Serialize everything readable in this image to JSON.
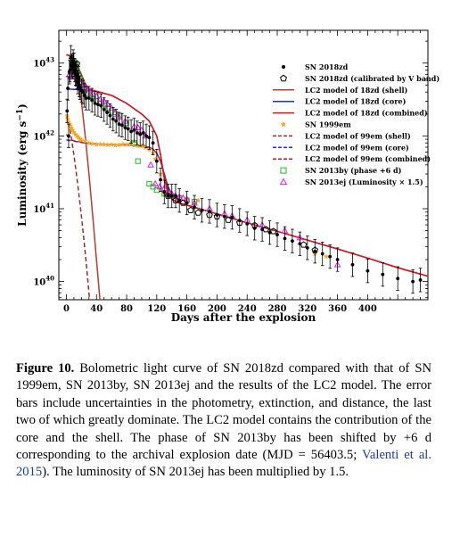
{
  "chart_data": {
    "type": "scatter",
    "xlabel": "Days after the explosion",
    "ylabel": "Luminosity (erg s⁻¹)",
    "xlim": [
      -10,
      480
    ],
    "ylim_log10": [
      39.75,
      43.45
    ],
    "y_scale": "log",
    "x_ticks": [
      "0",
      "40",
      "80",
      "120",
      "160",
      "200",
      "240",
      "280",
      "320",
      "360",
      "400"
    ],
    "y_ticks": [
      {
        "base": "10",
        "exp": "40"
      },
      {
        "base": "10",
        "exp": "41"
      },
      {
        "base": "10",
        "exp": "42"
      },
      {
        "base": "10",
        "exp": "43"
      }
    ],
    "legend_position": "top-right",
    "legend": [
      "SN 2018zd",
      "SN 2018zd (calibrated by V band)",
      "LC2 model of 18zd (shell)",
      "LC2 model of 18zd (core)",
      "LC2 model of 18zd (combined)",
      "SN 1999em",
      "LC2 model of 99em (shell)",
      "LC2 model of 99em (core)",
      "LC2 model of 99em (combined)",
      "SN 2013by (phase +6 d)",
      "SN 2013ej (Luminosity × 1.5)"
    ],
    "colors": {
      "sn2018zd": "#000000",
      "model18_shell": "#c0392b",
      "model18_core": "#1f2fd0",
      "model18_comb": "#e01010",
      "sn1999em": "#f5a623",
      "model99_shell": "#9b2d2d",
      "model99_core": "#1f2fd0",
      "model99_comb": "#e01010",
      "sn2013by": "#22bb22",
      "sn2013ej": "#e020e0"
    },
    "series": [
      {
        "name": "SN 2018zd",
        "x": [
          1,
          2,
          3,
          4,
          5,
          6,
          7,
          8,
          9,
          10,
          11,
          12,
          13,
          14,
          15,
          16,
          17,
          18,
          20,
          22,
          24,
          26,
          30,
          34,
          38,
          42,
          46,
          50,
          54,
          58,
          62,
          66,
          70,
          74,
          78,
          82,
          86,
          90,
          94,
          98,
          102,
          106,
          110,
          115,
          120,
          125,
          130,
          135,
          140,
          145,
          150,
          160,
          170,
          180,
          190,
          200,
          210,
          220,
          230,
          240,
          250,
          260,
          270,
          280,
          290,
          300,
          310,
          320,
          330,
          340,
          350,
          360,
          380,
          400,
          420,
          440,
          460,
          470
        ],
        "y": [
          2.2e+42,
          4.5e+42,
          1e+42,
          7.5e+42,
          8e+42,
          1.2e+43,
          9.2e+42,
          8.8e+42,
          1.05e+43,
          9.5e+42,
          8e+42,
          7.2e+42,
          7e+42,
          6.5e+42,
          5.5e+42,
          6.2e+42,
          5e+42,
          4.6e+42,
          4.2e+42,
          4e+42,
          3.6e+42,
          3.3e+42,
          3.3e+42,
          3.1e+42,
          2.8e+42,
          2.7e+42,
          2.6e+42,
          2.3e+42,
          2.1e+42,
          1.9e+42,
          1.7e+42,
          1.6e+42,
          1.45e+42,
          1.4e+42,
          1.3e+42,
          1.25e+42,
          1.15e+42,
          1.2e+42,
          1.1e+42,
          1.05e+42,
          1.1e+42,
          1e+42,
          9.5e+41,
          8e+41,
          4.5e+41,
          2.5e+41,
          1.7e+41,
          1.5e+41,
          1.5e+41,
          1.5e+41,
          1.3e+41,
          1.2e+41,
          1.05e+41,
          9.5e+40,
          9.2e+40,
          8.2e+40,
          7.8e+40,
          7.6e+40,
          6.9e+40,
          6.2e+40,
          5.4e+40,
          5.2e+40,
          4.7e+40,
          4.4e+40,
          3.9e+40,
          3.6e+40,
          3.3e+40,
          2.9e+40,
          2.6e+40,
          2.4e+40,
          2.2e+40,
          2e+40,
          1.7e+40,
          1.4e+40,
          1.25e+40,
          1.1e+40,
          1e+40,
          1.05e+40
        ]
      },
      {
        "name": "SN 2018zd (calibrated by V band)",
        "x": [
          8,
          14,
          135,
          145,
          155,
          165,
          175,
          190,
          200,
          215,
          230,
          250,
          265,
          275,
          315,
          330
        ],
        "y": [
          9.5e+42,
          9.8e+42,
          1.5e+41,
          1.3e+41,
          1.2e+41,
          9.5e+40,
          8.8e+40,
          8.2e+40,
          7.8e+40,
          7e+40,
          6.4e+40,
          5.9e+40,
          5.2e+40,
          4.9e+40,
          3.2e+40,
          2.7e+40
        ]
      },
      {
        "name": "LC2 model of 18zd (shell)",
        "x": [
          0,
          5,
          10,
          15,
          20,
          25,
          30,
          35,
          40,
          45,
          48
        ],
        "y": [
          1.3e+43,
          1.25e+43,
          1.1e+43,
          7e+42,
          3e+42,
          1e+42,
          3e+41,
          8e+40,
          2e+40,
          5e+39,
          1e+39
        ]
      },
      {
        "name": "LC2 model of 18zd (core)",
        "x": [
          0,
          20,
          40,
          60,
          80,
          100,
          110,
          120,
          125,
          130,
          135,
          140,
          150,
          160,
          200,
          240,
          280,
          320,
          360,
          400,
          440,
          480
        ],
        "y": [
          4.4e+42,
          4.3e+42,
          4.1e+42,
          3.6e+42,
          2.8e+42,
          2e+42,
          1.6e+42,
          1e+42,
          5.5e+41,
          2.6e+41,
          1.65e+41,
          1.35e+41,
          1.2e+41,
          1.12e+41,
          8.5e+40,
          6.4e+40,
          4.9e+40,
          3.7e+40,
          2.8e+40,
          2.1e+40,
          1.55e+40,
          1.18e+40
        ]
      },
      {
        "name": "LC2 model of 18zd (combined)",
        "x": [
          0,
          5,
          10,
          15,
          20,
          25,
          30,
          40,
          60,
          80,
          100,
          110,
          120,
          125,
          130,
          135,
          140,
          150,
          160,
          200,
          240,
          280,
          320,
          360,
          400,
          440,
          480
        ],
        "y": [
          1.3e+43,
          1.27e+43,
          1.15e+43,
          9e+42,
          7e+42,
          5.2e+42,
          4.4e+42,
          4.1e+42,
          3.6e+42,
          2.8e+42,
          2e+42,
          1.6e+42,
          1e+42,
          5.5e+41,
          2.6e+41,
          1.65e+41,
          1.35e+41,
          1.2e+41,
          1.12e+41,
          8.5e+40,
          6.4e+40,
          4.9e+40,
          3.7e+40,
          2.8e+40,
          2.1e+40,
          1.55e+40,
          1.18e+40
        ]
      },
      {
        "name": "SN 1999em",
        "x": [
          1,
          2,
          3,
          4,
          5,
          6,
          7,
          8,
          10,
          12,
          14,
          16,
          18,
          20,
          25,
          30,
          35,
          40,
          45,
          50,
          55,
          60,
          65,
          70,
          75,
          80,
          85,
          90,
          95,
          100,
          105,
          110,
          115,
          118,
          125,
          130,
          135,
          140,
          150,
          160,
          175,
          330,
          345
        ],
        "y": [
          1.9e+42,
          1.7e+42,
          1.55e+42,
          1.45e+42,
          1.38e+42,
          1.3e+42,
          1.25e+42,
          1.2e+42,
          1.12e+42,
          1.05e+42,
          1e+42,
          9.5e+41,
          9e+41,
          8.8e+41,
          8.5e+41,
          8e+41,
          7.8e+41,
          7.6e+41,
          7.7e+41,
          7.6e+41,
          7.5e+41,
          7.6e+41,
          7.4e+41,
          7.5e+41,
          7.7e+41,
          7.6e+41,
          7.8e+41,
          7.4e+41,
          7.3e+41,
          7.2e+41,
          6.9e+41,
          6.5e+41,
          5.8e+41,
          4.8e+41,
          3e+41,
          1.6e+41,
          1.55e+41,
          1.5e+41,
          1.42e+41,
          1.35e+41,
          1.3e+41,
          2.4e+40,
          2.2e+40
        ]
      },
      {
        "name": "LC2 model of 99em (shell)",
        "x": [
          0,
          5,
          10,
          15,
          20,
          25,
          30,
          32,
          34,
          36,
          38
        ],
        "y": [
          1.9e+42,
          1.2e+42,
          5.5e+41,
          2.2e+41,
          8e+40,
          2.5e+40,
          7e+39,
          4e+39,
          2e+39,
          1e+39,
          5e+38
        ]
      },
      {
        "name": "LC2 model of 99em (core)",
        "x": [
          0,
          10,
          20,
          30,
          40,
          60,
          80,
          100,
          110,
          115,
          120,
          125,
          130,
          135,
          140,
          145
        ],
        "y": [
          8.8e+41,
          8.5e+41,
          8.1e+41,
          7.9e+41,
          7.8e+41,
          7.6e+41,
          7.5e+41,
          7.3e+41,
          7e+41,
          6.6e+41,
          5.8e+41,
          4.5e+41,
          3e+41,
          2e+41,
          1.6e+41,
          1.45e+41
        ]
      },
      {
        "name": "LC2 model of 99em (combined)",
        "x": [
          0,
          5,
          10,
          20,
          30,
          40,
          60,
          80,
          100,
          110,
          115,
          120,
          125,
          130,
          135,
          140,
          145
        ],
        "y": [
          1.05e+42,
          8.9e+41,
          8.6e+41,
          8.2e+41,
          7.9e+41,
          7.8e+41,
          7.6e+41,
          7.5e+41,
          7.3e+41,
          7e+41,
          6.6e+41,
          5.8e+41,
          4.5e+41,
          3e+41,
          2e+41,
          1.6e+41,
          1.45e+41
        ]
      },
      {
        "name": "SN 2013by (phase +6 d)",
        "x": [
          6,
          8,
          10,
          12,
          14,
          16,
          18,
          20,
          24,
          28,
          32,
          36,
          40,
          45,
          50,
          55,
          60,
          65,
          70,
          80,
          90,
          95,
          110,
          115,
          120,
          130,
          140,
          150,
          160,
          170
        ],
        "y": [
          7.5e+42,
          9.5e+42,
          1.05e+43,
          1e+43,
          8e+42,
          6.8e+42,
          6e+42,
          5.2e+42,
          4.4e+42,
          3.8e+42,
          3.5e+42,
          3.2e+42,
          3e+42,
          2.8e+42,
          2.6e+42,
          2.4e+42,
          2.2e+42,
          2e+42,
          1.9e+42,
          1.5e+42,
          8e+41,
          4.5e+41,
          2.2e+41,
          2e+41,
          1.8e+41,
          1.6e+41,
          1.5e+41,
          1.4e+41,
          1.3e+41,
          1.25e+41
        ]
      },
      {
        "name": "SN 2013ej (Luminosity × 1.5)",
        "x": [
          4,
          6,
          8,
          10,
          12,
          15,
          18,
          22,
          26,
          30,
          35,
          40,
          45,
          50,
          55,
          60,
          65,
          70,
          78,
          90,
          95,
          100,
          105,
          112,
          118,
          124,
          130,
          135,
          140,
          145,
          150,
          155,
          160,
          170,
          190,
          210,
          220,
          240,
          260,
          290,
          310,
          360
        ],
        "y": [
          7e+42,
          6.5e+42,
          7.8e+42,
          7e+42,
          6.5e+42,
          6e+42,
          5.5e+42,
          5e+42,
          4.5e+42,
          4.2e+42,
          3.8e+42,
          3.5e+42,
          3.2e+42,
          3e+42,
          2.7e+42,
          2.4e+42,
          2.1e+42,
          1.8e+42,
          1.6e+42,
          1.35e+42,
          1.3e+42,
          1.2e+42,
          1e+42,
          4e+41,
          2.2e+41,
          2e+41,
          1.9e+41,
          1.7e+41,
          1.6e+41,
          1.5e+41,
          1.45e+41,
          1.4e+41,
          1.35e+41,
          1.2e+41,
          1e+41,
          8.5e+40,
          8e+40,
          7e+40,
          6e+40,
          5e+40,
          4e+40,
          1.7e+40
        ]
      }
    ]
  },
  "caption": {
    "label": "Figure 10.",
    "text_1": " Bolometric light curve of SN 2018zd compared with that of SN 1999em, SN 2013by, SN 2013ej and the results of the LC2 model. The error bars include uncertainties in the photometry, extinction, and distance, the last two of which greatly dominate. The LC2 model contains the contribution of the core and the shell. The phase of SN 2013by has been shifted by +6 d corresponding to the archival explosion date (MJD = 56403.5; ",
    "citation": "Valenti et al. 2015",
    "text_2": "). The luminosity of SN 2013ej has been multiplied by 1.5."
  }
}
